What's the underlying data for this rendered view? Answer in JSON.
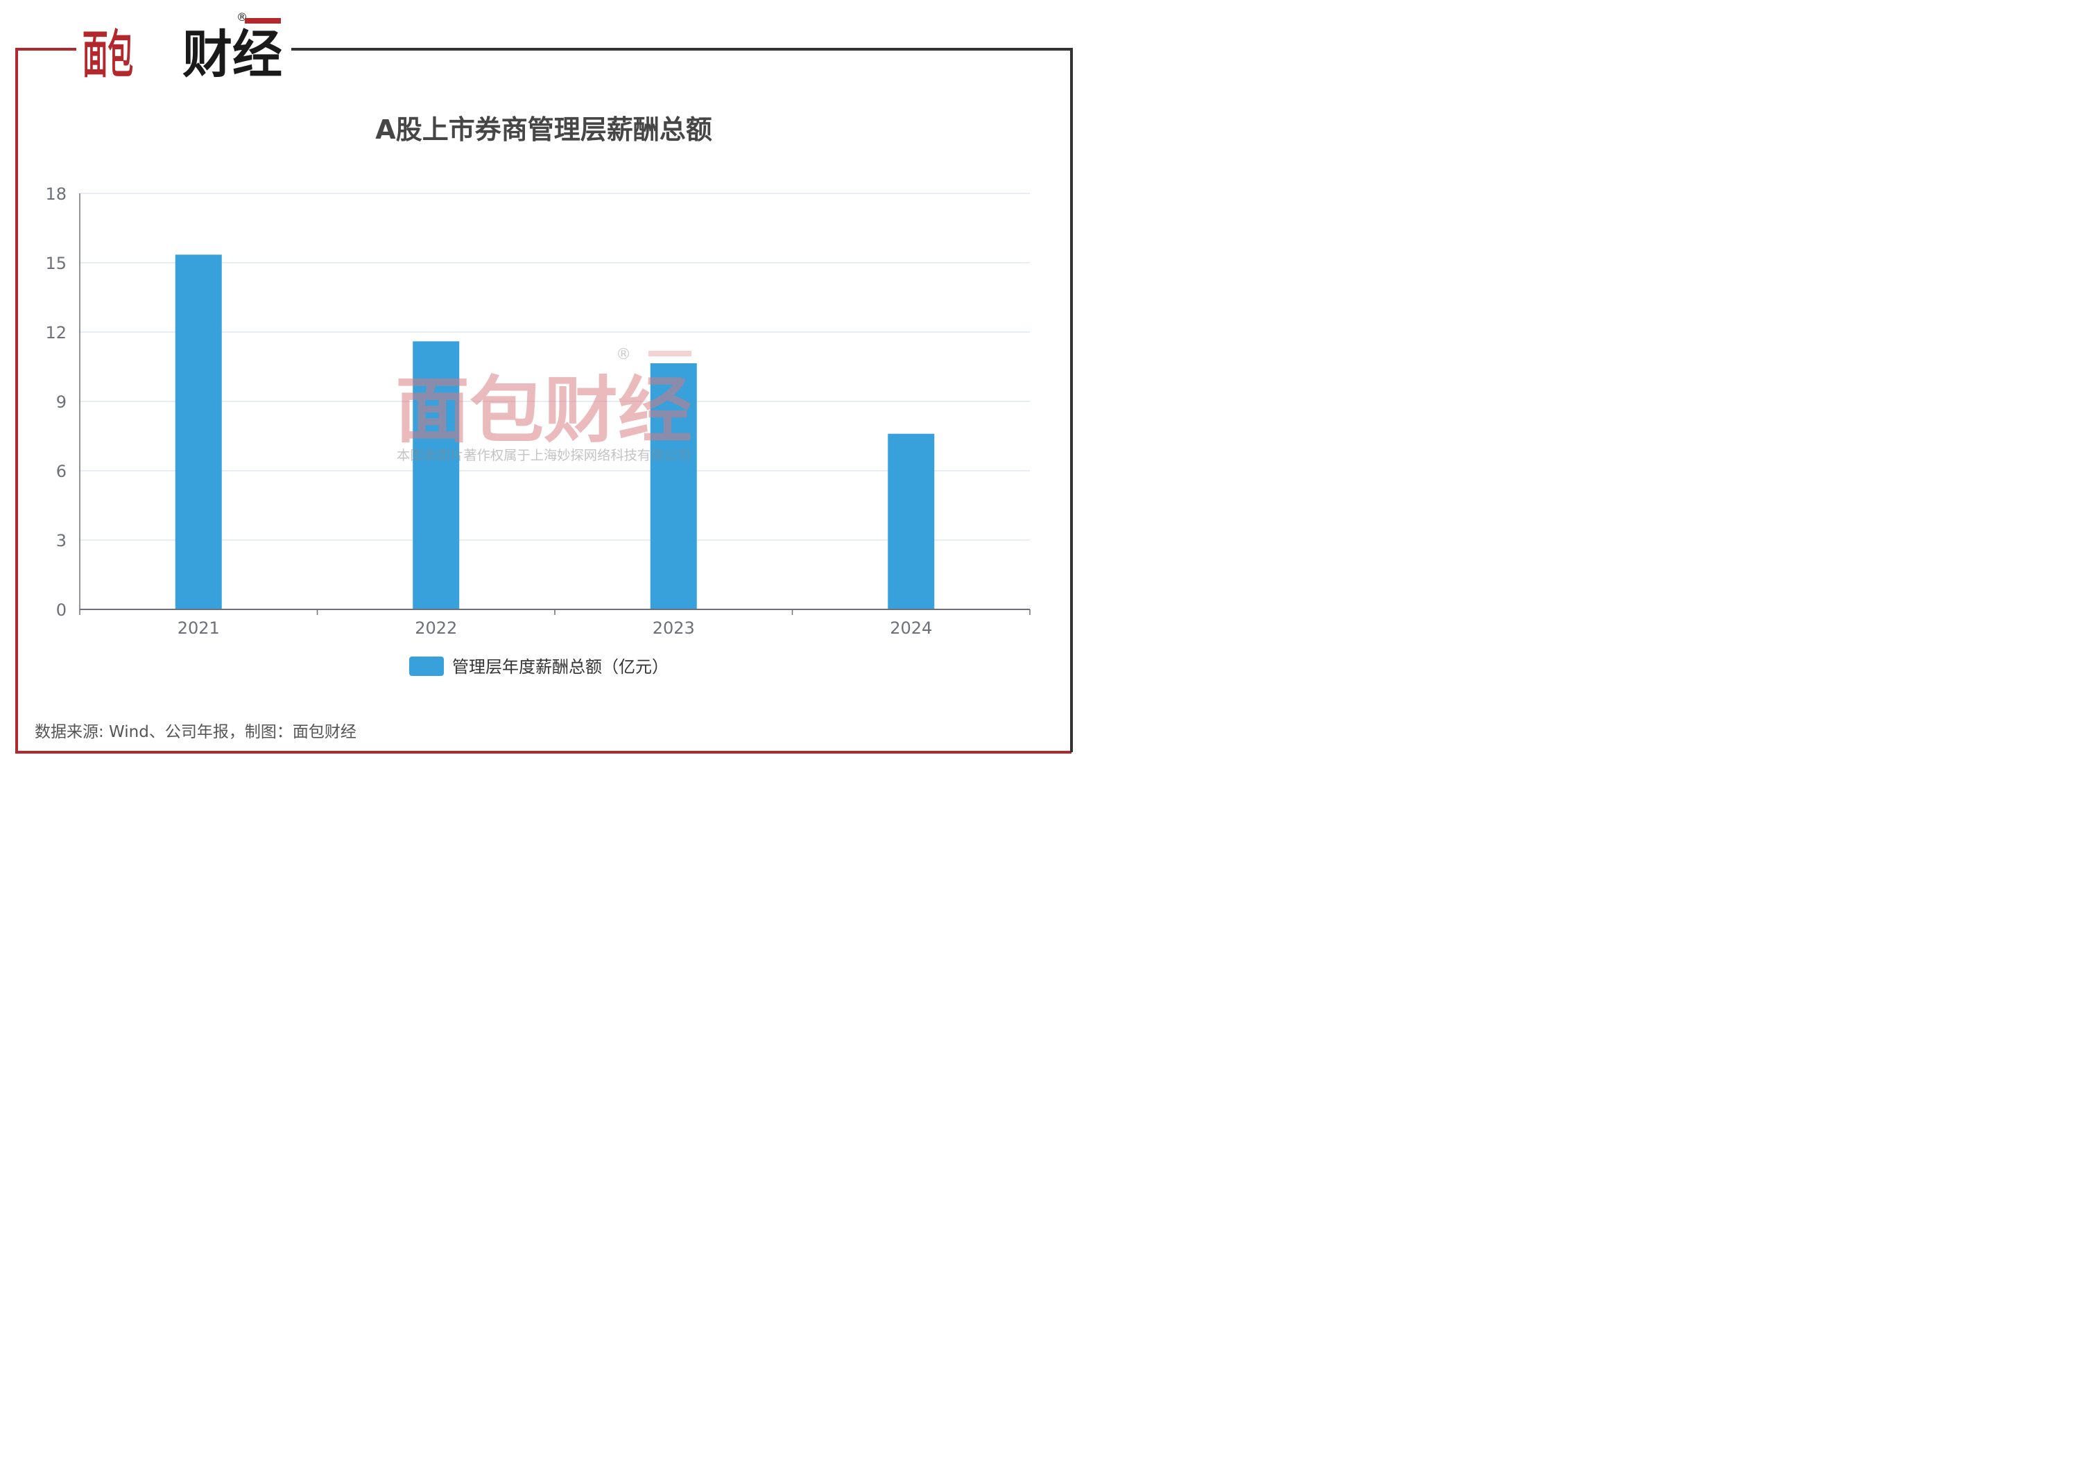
{
  "brand": {
    "logo_text": "面包财经",
    "registered_mark": "®"
  },
  "watermark": {
    "logo_text": "面包财经",
    "registered_mark": "®",
    "copyright": "本图表图片著作权属于上海妙探网络科技有限公司"
  },
  "colors": {
    "frame_red": "#B3282D",
    "frame_dark": "#333333",
    "bar": "#38A1DB",
    "grid": "#E0E6F1"
  },
  "chart_data": {
    "type": "bar",
    "title": "A股上市券商管理层薪酬总额",
    "categories": [
      "2021",
      "2022",
      "2023",
      "2024"
    ],
    "series": [
      {
        "name": "管理层年度薪酬总额（亿元）",
        "values": [
          15.35,
          11.6,
          10.65,
          7.6
        ]
      }
    ],
    "ylim": [
      0,
      18
    ],
    "yticks": [
      "0",
      "3",
      "6",
      "9",
      "12",
      "15",
      "18"
    ],
    "grid": true,
    "legend": "bottom-center"
  },
  "footer": {
    "source": "数据来源: Wind、公司年报，制图：面包财经"
  }
}
